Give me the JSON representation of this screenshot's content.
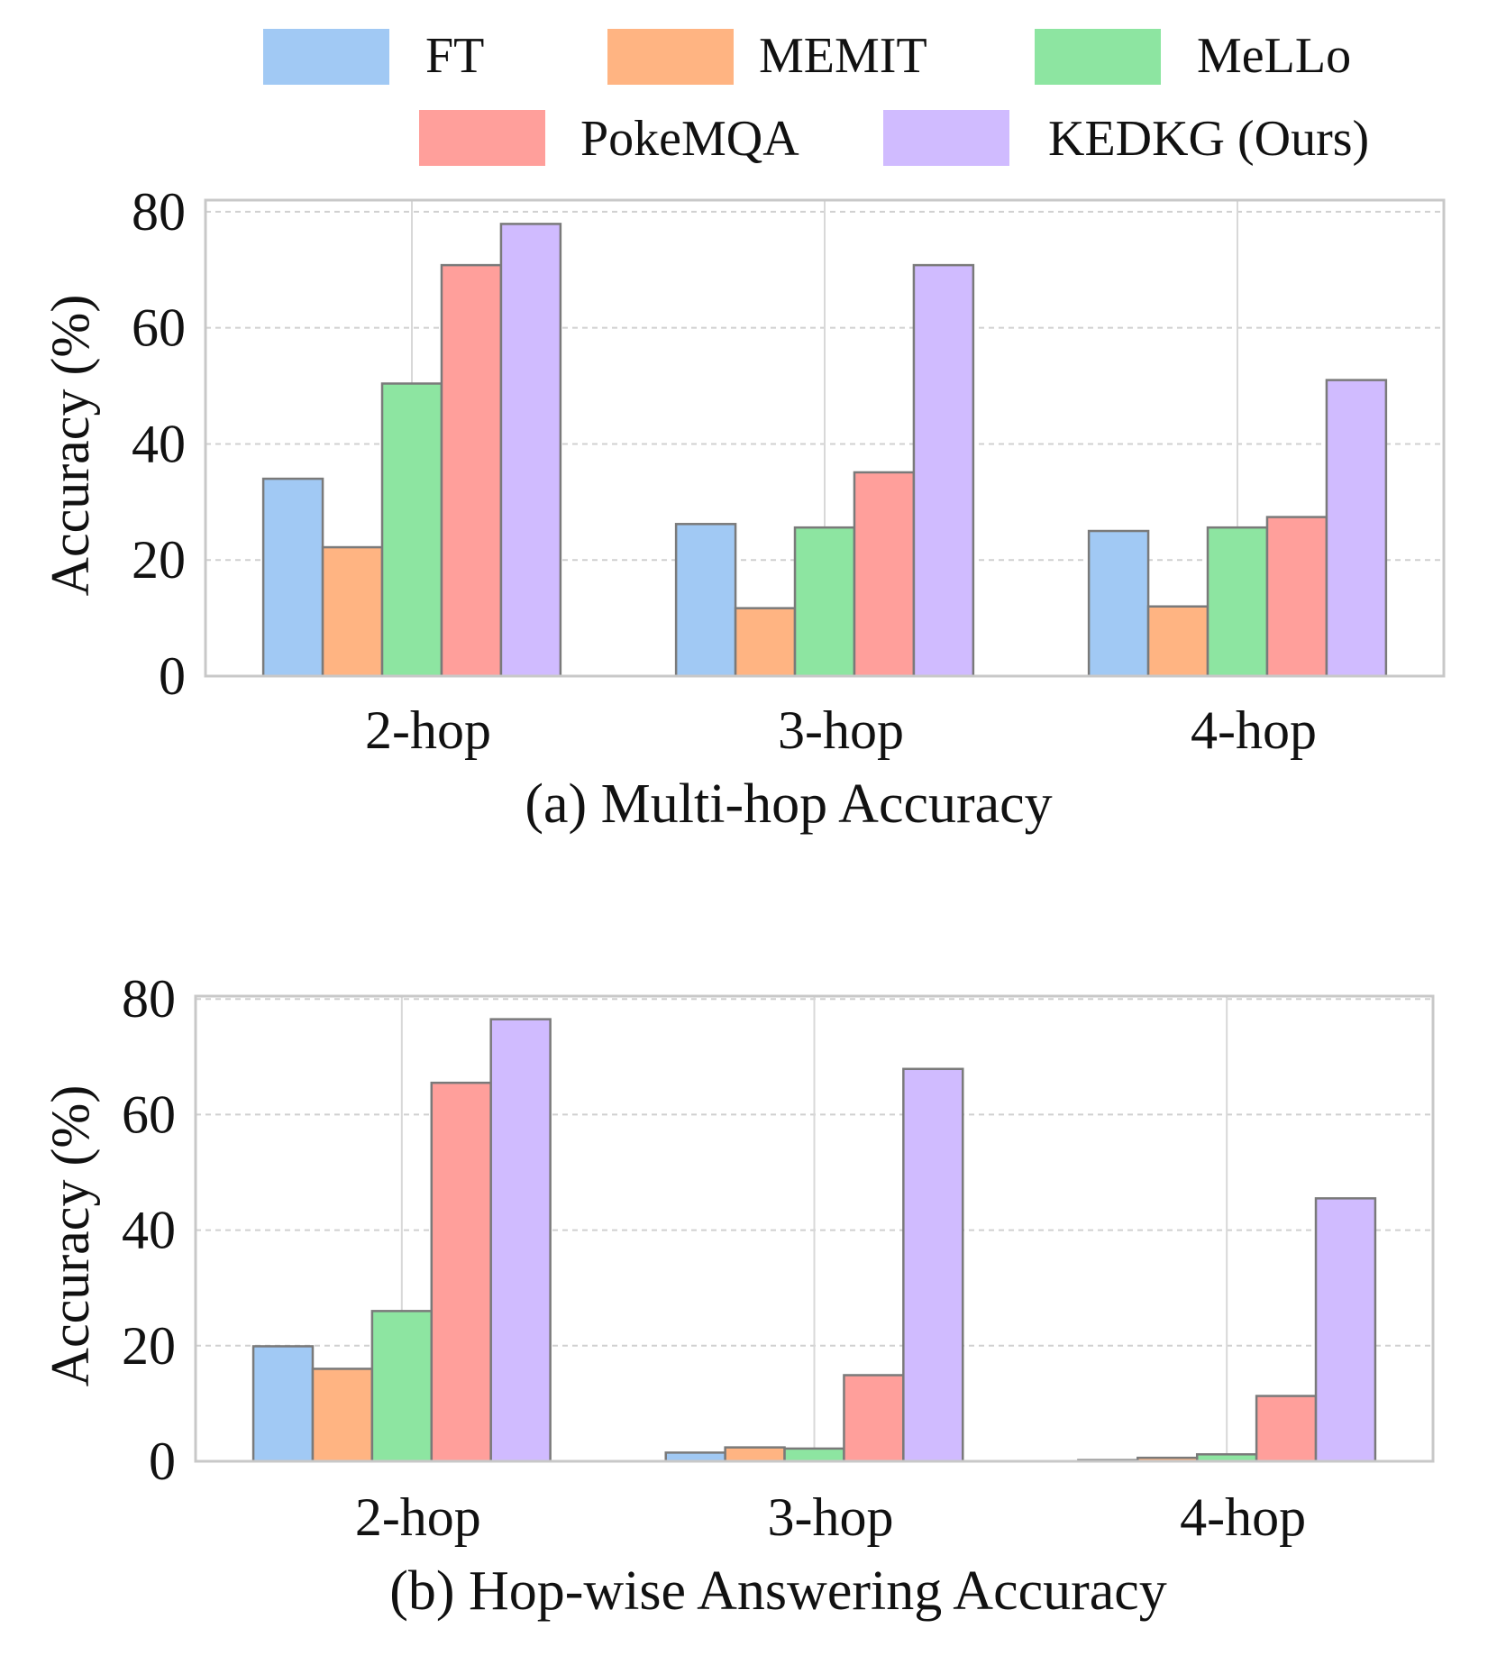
{
  "legend": {
    "entries": [
      {
        "label": "FT",
        "color": "#a1c9f4"
      },
      {
        "label": "MEMIT",
        "color": "#ffb482"
      },
      {
        "label": "MeLLo",
        "color": "#8de5a1"
      },
      {
        "label": "PokeMQA",
        "color": "#ff9f9b"
      },
      {
        "label": "KEDKG (Ours)",
        "color": "#d0bbff"
      }
    ]
  },
  "chart_data": [
    {
      "type": "bar",
      "title": "(a) Multi-hop Accuracy",
      "xlabel": "",
      "ylabel": "Accuracy (%)",
      "categories": [
        "2-hop",
        "3-hop",
        "4-hop"
      ],
      "ylim": [
        0,
        82
      ],
      "yticks": [
        0,
        20,
        40,
        60,
        80
      ],
      "grid": true,
      "series": [
        {
          "name": "FT",
          "values": [
            34,
            26.2,
            25
          ]
        },
        {
          "name": "MEMIT",
          "values": [
            22.2,
            11.7,
            12
          ]
        },
        {
          "name": "MeLLo",
          "values": [
            50.4,
            25.6,
            25.6
          ]
        },
        {
          "name": "PokeMQA",
          "values": [
            70.8,
            35.1,
            27.4
          ]
        },
        {
          "name": "KEDKG (Ours)",
          "values": [
            77.9,
            70.8,
            51
          ]
        }
      ]
    },
    {
      "type": "bar",
      "title": "(b) Hop-wise Answering Accuracy",
      "xlabel": "",
      "ylabel": "Accuracy (%)",
      "categories": [
        "2-hop",
        "3-hop",
        "4-hop"
      ],
      "ylim": [
        0,
        80.5
      ],
      "yticks": [
        0,
        20,
        40,
        60,
        80
      ],
      "grid": true,
      "series": [
        {
          "name": "FT",
          "values": [
            19.9,
            1.5,
            0.2
          ]
        },
        {
          "name": "MEMIT",
          "values": [
            16,
            2.4,
            0.6
          ]
        },
        {
          "name": "MeLLo",
          "values": [
            26,
            2.2,
            1.2
          ]
        },
        {
          "name": "PokeMQA",
          "values": [
            65.5,
            14.9,
            11.3
          ]
        },
        {
          "name": "KEDKG (Ours)",
          "values": [
            76.5,
            67.9,
            45.5
          ]
        }
      ]
    }
  ]
}
